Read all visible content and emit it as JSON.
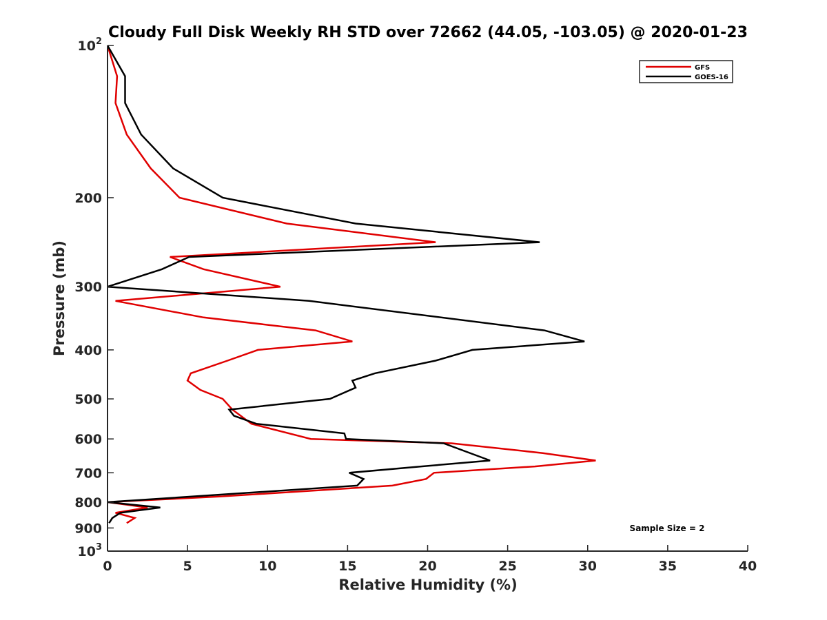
{
  "chart_data": {
    "type": "line",
    "title": "Cloudy Full Disk Weekly RH STD over 72662 (44.05, -103.05) @ 2020-01-23",
    "xlabel": "Relative Humidity (%)",
    "ylabel": "Pressure (mb)",
    "xlim": [
      0,
      40
    ],
    "ylim": [
      100,
      1000
    ],
    "y_scale": "log",
    "y_reversed": true,
    "grid": false,
    "legend_position": "top-right",
    "x_ticks": [
      0,
      5,
      10,
      15,
      20,
      25,
      30,
      35,
      40
    ],
    "y_ticks": [
      {
        "value": 100,
        "label": "10",
        "sup": "2"
      },
      {
        "value": 200,
        "label": "200",
        "sup": ""
      },
      {
        "value": 300,
        "label": "300",
        "sup": ""
      },
      {
        "value": 400,
        "label": "400",
        "sup": ""
      },
      {
        "value": 500,
        "label": "500",
        "sup": ""
      },
      {
        "value": 600,
        "label": "600",
        "sup": ""
      },
      {
        "value": 700,
        "label": "700",
        "sup": ""
      },
      {
        "value": 800,
        "label": "800",
        "sup": ""
      },
      {
        "value": 900,
        "label": "900",
        "sup": ""
      },
      {
        "value": 1000,
        "label": "10",
        "sup": "3"
      }
    ],
    "annotation": "Sample Size = 2",
    "series": [
      {
        "name": "GFS",
        "color": "#e00000",
        "points": [
          [
            0.0,
            100
          ],
          [
            0.6,
            115
          ],
          [
            0.5,
            130
          ],
          [
            1.2,
            150
          ],
          [
            2.7,
            175
          ],
          [
            4.5,
            200
          ],
          [
            11.2,
            225
          ],
          [
            20.5,
            245
          ],
          [
            3.9,
            262
          ],
          [
            6.0,
            277
          ],
          [
            10.8,
            300
          ],
          [
            0.5,
            320
          ],
          [
            6.0,
            345
          ],
          [
            13.0,
            366
          ],
          [
            15.3,
            385
          ],
          [
            9.4,
            400
          ],
          [
            7.5,
            420
          ],
          [
            5.2,
            445
          ],
          [
            5.0,
            460
          ],
          [
            5.8,
            480
          ],
          [
            7.2,
            500
          ],
          [
            7.8,
            525
          ],
          [
            9.0,
            560
          ],
          [
            12.7,
            600
          ],
          [
            21.5,
            612
          ],
          [
            27.2,
            640
          ],
          [
            30.5,
            662
          ],
          [
            26.7,
            680
          ],
          [
            20.4,
            700
          ],
          [
            19.9,
            720
          ],
          [
            17.8,
            742
          ],
          [
            7.0,
            780
          ],
          [
            0.0,
            800
          ],
          [
            2.5,
            820
          ],
          [
            0.5,
            840
          ],
          [
            1.7,
            860
          ],
          [
            1.2,
            880
          ]
        ]
      },
      {
        "name": "GOES-16",
        "color": "#000000",
        "points": [
          [
            0.0,
            100
          ],
          [
            1.1,
            115
          ],
          [
            1.1,
            130
          ],
          [
            2.1,
            150
          ],
          [
            4.1,
            175
          ],
          [
            7.2,
            200
          ],
          [
            15.5,
            225
          ],
          [
            27.0,
            245
          ],
          [
            5.1,
            262
          ],
          [
            3.4,
            277
          ],
          [
            0.0,
            300
          ],
          [
            12.6,
            320
          ],
          [
            27.3,
            366
          ],
          [
            29.8,
            385
          ],
          [
            22.8,
            400
          ],
          [
            20.5,
            420
          ],
          [
            16.7,
            445
          ],
          [
            15.3,
            460
          ],
          [
            15.5,
            475
          ],
          [
            13.9,
            500
          ],
          [
            7.6,
            525
          ],
          [
            7.9,
            540
          ],
          [
            9.3,
            560
          ],
          [
            14.8,
            585
          ],
          [
            14.9,
            600
          ],
          [
            21.0,
            612
          ],
          [
            23.9,
            662
          ],
          [
            19.6,
            680
          ],
          [
            15.1,
            700
          ],
          [
            16.0,
            720
          ],
          [
            15.6,
            742
          ],
          [
            0.0,
            800
          ],
          [
            3.3,
            820
          ],
          [
            0.8,
            840
          ],
          [
            0.3,
            860
          ],
          [
            0.1,
            880
          ]
        ]
      }
    ]
  }
}
